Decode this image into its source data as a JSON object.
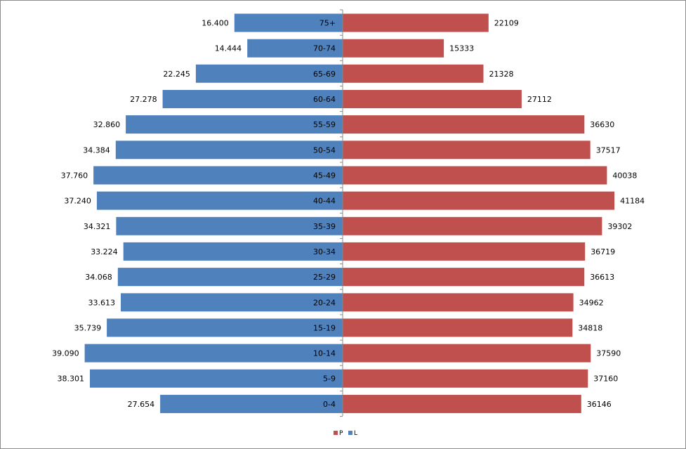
{
  "chart_data": {
    "type": "bar",
    "orientation": "horizontal",
    "layout": "population-pyramid",
    "categories": [
      "75+",
      "70-74",
      "65-69",
      "60-64",
      "55-59",
      "50-54",
      "45-49",
      "40-44",
      "35-39",
      "30-34",
      "25-29",
      "20-24",
      "15-19",
      "10-14",
      "5-9",
      "0-4"
    ],
    "series": [
      {
        "name": "L",
        "side": "left",
        "color": "#4F81BD",
        "values": [
          16400,
          14444,
          22245,
          27278,
          32860,
          34384,
          37760,
          37240,
          34321,
          33224,
          34068,
          33613,
          35739,
          39090,
          38301,
          27654
        ],
        "labels": [
          "16.400",
          "14.444",
          "22.245",
          "27.278",
          "32.860",
          "34.384",
          "37.760",
          "37.240",
          "34.321",
          "33.224",
          "34.068",
          "33.613",
          "35.739",
          "39.090",
          "38.301",
          "27.654"
        ]
      },
      {
        "name": "P",
        "side": "right",
        "color": "#C0504D",
        "values": [
          22109,
          15333,
          21328,
          27112,
          36630,
          37517,
          40038,
          41184,
          39302,
          36719,
          36613,
          34962,
          34818,
          37590,
          37160,
          36146
        ],
        "labels": [
          "22109",
          "15333",
          "21328",
          "27112",
          "36630",
          "37517",
          "40038",
          "41184",
          "39302",
          "36719",
          "36613",
          "34962",
          "34818",
          "37590",
          "37160",
          "36146"
        ]
      }
    ],
    "title": "",
    "xlabel": "",
    "ylabel": "",
    "grid": false,
    "legend": {
      "position": "bottom",
      "order": [
        "P",
        "L"
      ]
    }
  }
}
